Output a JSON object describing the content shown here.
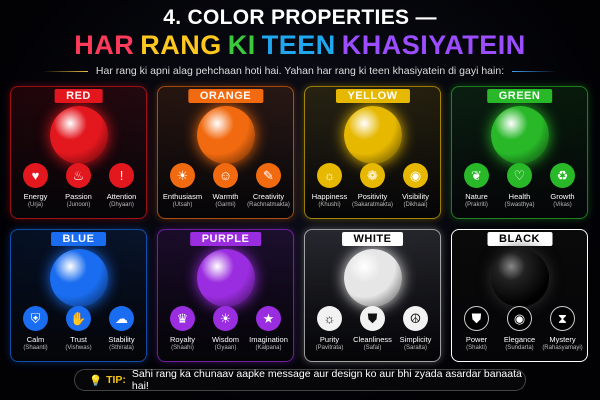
{
  "header": {
    "title": "4. COLOR PROPERTIES —",
    "subtitle_words": [
      {
        "text": "HAR",
        "color": "#ff3b5c"
      },
      {
        "text": "RANG",
        "color": "#ffc81e"
      },
      {
        "text": "KI",
        "color": "#3cc83c"
      },
      {
        "text": "TEEN",
        "color": "#1fa8f0"
      },
      {
        "text": "KHASIYATEIN",
        "color": "#9b4dff"
      }
    ],
    "description": "Har rang ki apni alag pehchaan hoti hai. Yahan har rang ki teen khasiyatein di gayi hain:"
  },
  "colors": [
    {
      "name": "RED",
      "accent": "#e3171e",
      "props": [
        {
          "label": "Energy",
          "hindi": "(Urja)",
          "icon": "heart-icon",
          "glyph": "♥"
        },
        {
          "label": "Passion",
          "hindi": "(Junoon)",
          "icon": "flame-icon",
          "glyph": "♨"
        },
        {
          "label": "Attention",
          "hindi": "(Dhyaan)",
          "icon": "exclamation-icon",
          "glyph": "!"
        }
      ]
    },
    {
      "name": "ORANGE",
      "accent": "#f26a0f",
      "props": [
        {
          "label": "Enthusiasm",
          "hindi": "(Utsah)",
          "icon": "lightbulb-icon",
          "glyph": "☀"
        },
        {
          "label": "Warmth",
          "hindi": "(Garmi)",
          "icon": "smiley-icon",
          "glyph": "☺"
        },
        {
          "label": "Creativity",
          "hindi": "(Rachnatmakta)",
          "icon": "pencil-ruler-icon",
          "glyph": "✎"
        }
      ]
    },
    {
      "name": "YELLOW",
      "accent": "#e6b800",
      "props": [
        {
          "label": "Happiness",
          "hindi": "(Khushi)",
          "icon": "sun-icon",
          "glyph": "☼"
        },
        {
          "label": "Positivity",
          "hindi": "(Sakaratmakta)",
          "icon": "brain-icon",
          "glyph": "❁"
        },
        {
          "label": "Visibility",
          "hindi": "(Dikhaai)",
          "icon": "eye-icon",
          "glyph": "◉"
        }
      ]
    },
    {
      "name": "GREEN",
      "accent": "#28b828",
      "props": [
        {
          "label": "Nature",
          "hindi": "(Prakriti)",
          "icon": "leaf-icon",
          "glyph": "❦"
        },
        {
          "label": "Health",
          "hindi": "(Swasthya)",
          "icon": "heart-pulse-icon",
          "glyph": "♡"
        },
        {
          "label": "Growth",
          "hindi": "(Vikas)",
          "icon": "recycle-icon",
          "glyph": "♻"
        }
      ]
    },
    {
      "name": "BLUE",
      "accent": "#1a6df0",
      "props": [
        {
          "label": "Calm",
          "hindi": "(Shaanti)",
          "icon": "shield-icon",
          "glyph": "⛨"
        },
        {
          "label": "Trust",
          "hindi": "(Vishwas)",
          "icon": "handshake-icon",
          "glyph": "✋"
        },
        {
          "label": "Stability",
          "hindi": "(Sthirata)",
          "icon": "cloud-icon",
          "glyph": "☁"
        }
      ]
    },
    {
      "name": "PURPLE",
      "accent": "#9b2de0",
      "props": [
        {
          "label": "Royalty",
          "hindi": "(Shaahi)",
          "icon": "crown-icon",
          "glyph": "♛"
        },
        {
          "label": "Wisdom",
          "hindi": "(Gyaan)",
          "icon": "lightbulb-icon",
          "glyph": "☀"
        },
        {
          "label": "Imagination",
          "hindi": "(Kalpana)",
          "icon": "star-icon",
          "glyph": "★"
        }
      ]
    },
    {
      "name": "WHITE",
      "accent": "#e6e6e6",
      "props": [
        {
          "label": "Purity",
          "hindi": "(Pavitrata)",
          "icon": "sun-icon",
          "glyph": "☼"
        },
        {
          "label": "Cleanliness",
          "hindi": "(Safai)",
          "icon": "shield-icon",
          "glyph": "⛊"
        },
        {
          "label": "Simplicity",
          "hindi": "(Saralta)",
          "icon": "peace-icon",
          "glyph": "☮"
        }
      ]
    },
    {
      "name": "BLACK",
      "accent": "#1a1a1a",
      "props": [
        {
          "label": "Power",
          "hindi": "(Shakti)",
          "icon": "shield-icon",
          "glyph": "⛊"
        },
        {
          "label": "Elegance",
          "hindi": "(Sundarta)",
          "icon": "eye-icon",
          "glyph": "◉"
        },
        {
          "label": "Mystery",
          "hindi": "(Rahasyamayi)",
          "icon": "hourglass-icon",
          "glyph": "⧗"
        }
      ]
    }
  ],
  "tip": {
    "label": "TIP:",
    "text": "Sahi rang ka chunaav aapke message aur design ko aur bhi zyada asardar banaata hai!",
    "icon": "lightbulb-icon"
  }
}
